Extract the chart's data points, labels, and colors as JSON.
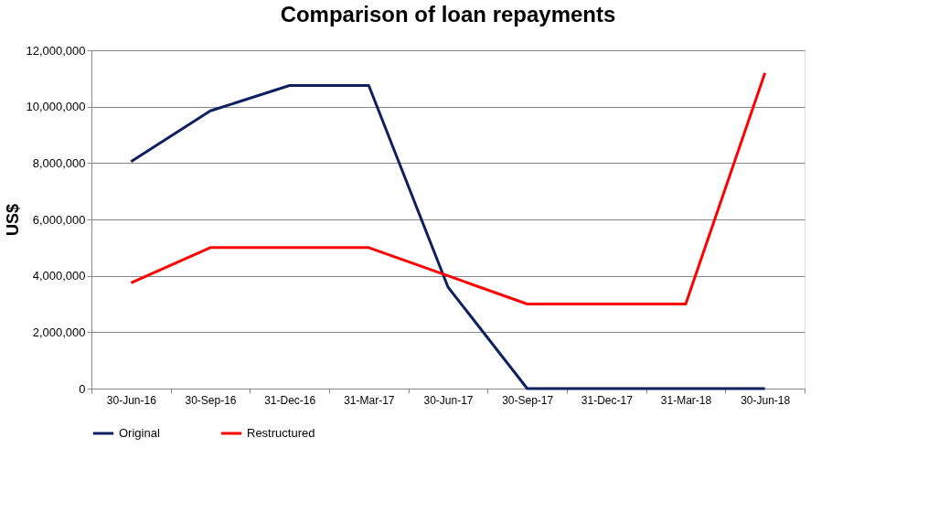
{
  "chart_data": {
    "type": "line",
    "title": "Comparison of loan repayments",
    "ylabel": "US$",
    "categories": [
      "30-Jun-16",
      "30-Sep-16",
      "31-Dec-16",
      "31-Mar-17",
      "30-Jun-17",
      "30-Sep-17",
      "31-Dec-17",
      "31-Mar-18",
      "30-Jun-18"
    ],
    "series": [
      {
        "name": "Original",
        "color": "#0e2060",
        "values": [
          8050000,
          9850000,
          10750000,
          10750000,
          3600000,
          0,
          0,
          0,
          0
        ]
      },
      {
        "name": "Restructured",
        "color": "#ff0000",
        "values": [
          3750000,
          5000000,
          5000000,
          5000000,
          4000000,
          3000000,
          3000000,
          3000000,
          11200000
        ]
      }
    ],
    "ylim": [
      0,
      12000000
    ],
    "yticks": [
      0,
      {
        "value": 2000000,
        "label": "2,000,000"
      },
      {
        "value": 4000000,
        "label": "4,000,000"
      },
      {
        "value": 6000000,
        "label": "6,000,000"
      },
      {
        "value": 8000000,
        "label": "8,000,000"
      },
      {
        "value": 10000000,
        "label": "10,000,000"
      },
      {
        "value": 12000000,
        "label": "12,000,000"
      }
    ],
    "grid": "y",
    "legend": "bottom",
    "marker": "none",
    "line_style": "solid"
  }
}
